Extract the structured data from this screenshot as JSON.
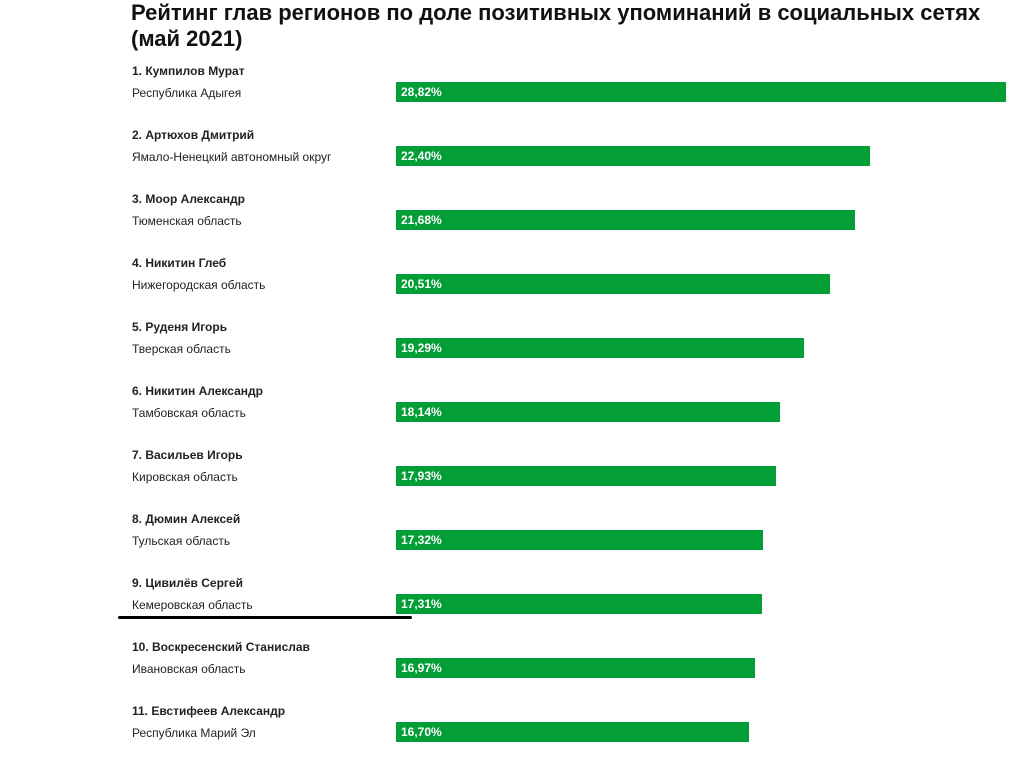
{
  "chart_data": {
    "type": "bar",
    "title": "Рейтинг глав регионов по доле позитивных упоминаний в социальных сетях (май 2021)",
    "xlim": [
      0,
      28.82
    ],
    "bar_color": "#049e37",
    "label_color": "#ffffff",
    "items": [
      {
        "name": "1. Кумпилов Мурат",
        "region": "Республика Адыгея",
        "value": 28.82,
        "label": "28,82%"
      },
      {
        "name": "2. Артюхов Дмитрий",
        "region": "Ямало-Ненецкий автономный округ",
        "value": 22.4,
        "label": "22,40%"
      },
      {
        "name": "3. Моор Александр",
        "region": "Тюменская область",
        "value": 21.68,
        "label": "21,68%"
      },
      {
        "name": "4. Никитин Глеб",
        "region": "Нижегородская область",
        "value": 20.51,
        "label": "20,51%"
      },
      {
        "name": "5. Руденя Игорь",
        "region": "Тверская область",
        "value": 19.29,
        "label": "19,29%"
      },
      {
        "name": "6. Никитин Александр",
        "region": "Тамбовская область",
        "value": 18.14,
        "label": "18,14%"
      },
      {
        "name": "7. Васильев Игорь",
        "region": "Кировская область",
        "value": 17.93,
        "label": "17,93%"
      },
      {
        "name": "8. Дюмин Алексей",
        "region": "Тульская область",
        "value": 17.32,
        "label": "17,32%"
      },
      {
        "name": "9. Цивилёв Сергей",
        "region": "Кемеровская область",
        "value": 17.31,
        "label": "17,31%"
      },
      {
        "name": "10. Воскресенский Станислав",
        "region": "Ивановская область",
        "value": 16.97,
        "label": "16,97%"
      },
      {
        "name": "11. Евстифеев Александр",
        "region": "Республика Марий Эл",
        "value": 16.7,
        "label": "16,70%"
      }
    ]
  }
}
